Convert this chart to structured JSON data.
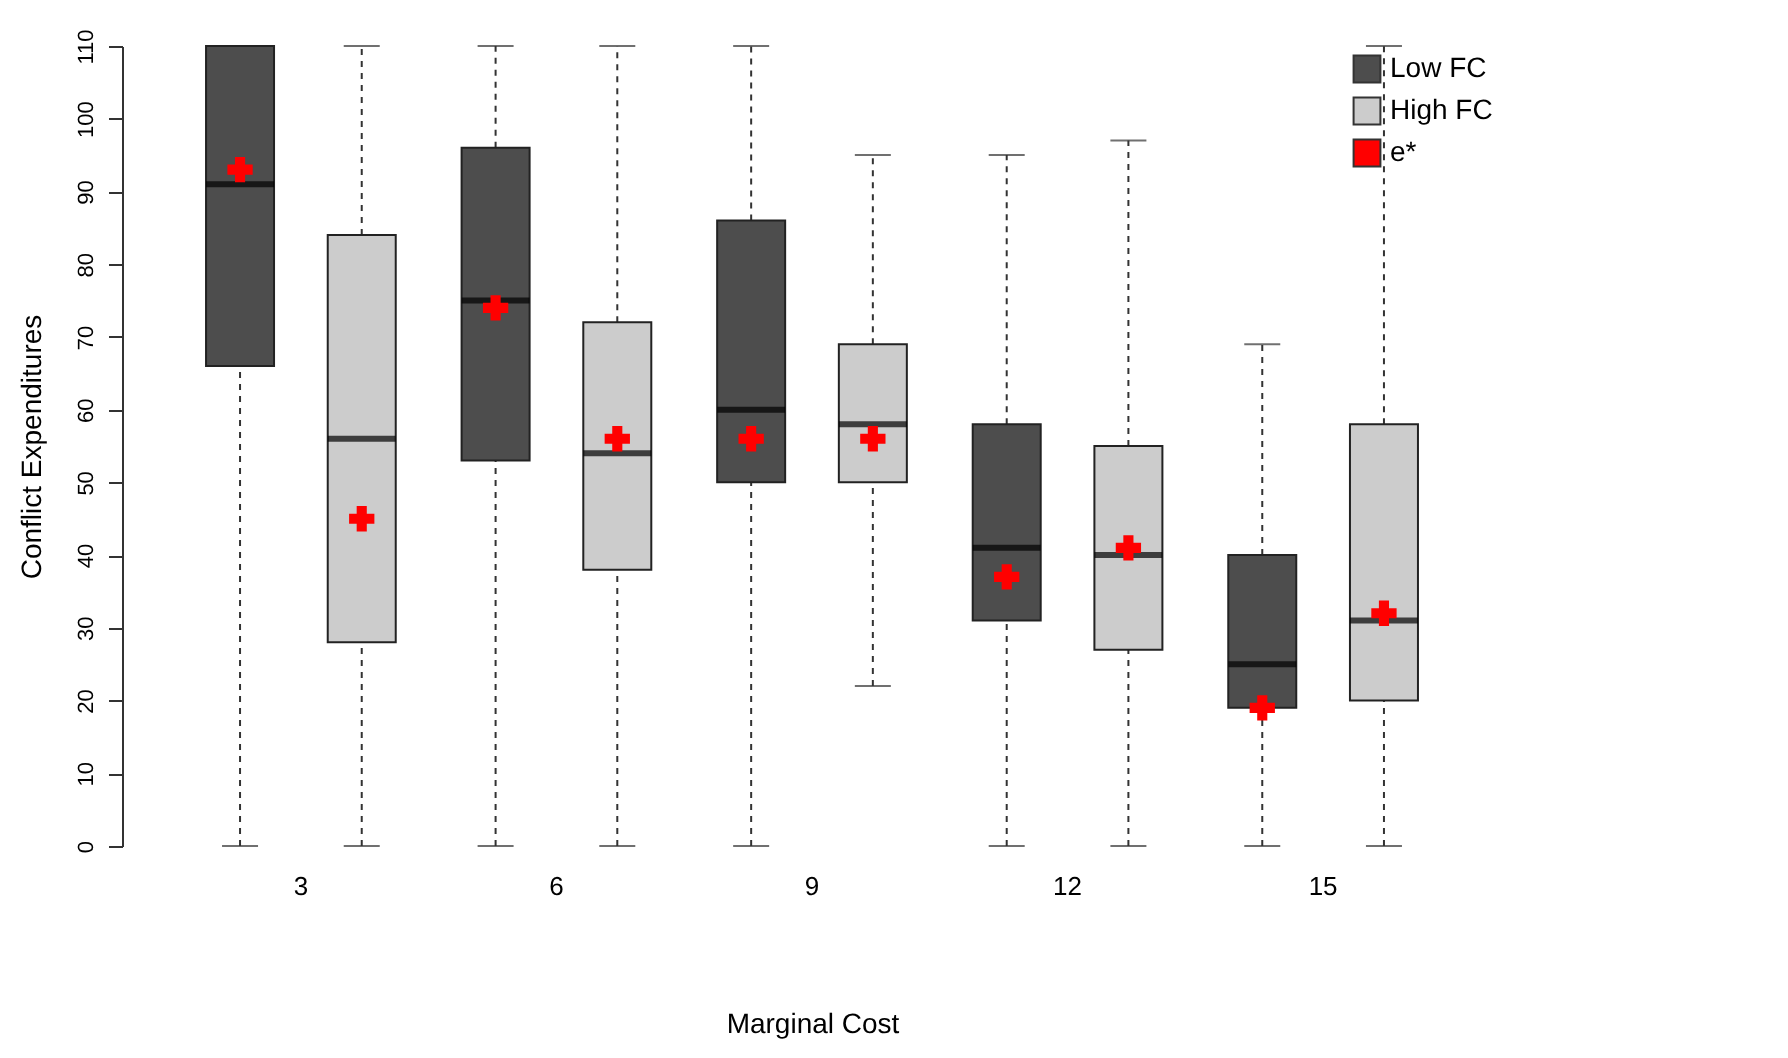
{
  "chart_data": {
    "type": "box",
    "xlabel": "Marginal Cost",
    "ylabel": "Conflict Expenditures",
    "categories": [
      "3",
      "6",
      "9",
      "12",
      "15"
    ],
    "ylim": [
      0,
      110
    ],
    "yticks": [
      0,
      10,
      20,
      30,
      40,
      50,
      60,
      70,
      80,
      90,
      100,
      110
    ],
    "grid": false,
    "legend": "top right",
    "marker": "cross",
    "series": [
      {
        "name": "Low FC",
        "color": "#4d4d4d",
        "boxes": [
          {
            "low": 0,
            "q1": 66,
            "median": 91,
            "q3": 110,
            "high": 110
          },
          {
            "low": 0,
            "q1": 53,
            "median": 75,
            "q3": 96,
            "high": 110
          },
          {
            "low": 0,
            "q1": 50,
            "median": 60,
            "q3": 86,
            "high": 110
          },
          {
            "low": 0,
            "q1": 31,
            "median": 41,
            "q3": 58,
            "high": 95
          },
          {
            "low": 0,
            "q1": 19,
            "median": 25,
            "q3": 40,
            "high": 69
          }
        ]
      },
      {
        "name": "High FC",
        "color": "#cccccc",
        "boxes": [
          {
            "low": 0,
            "q1": 28,
            "median": 56,
            "q3": 84,
            "high": 110
          },
          {
            "low": 0,
            "q1": 38,
            "median": 54,
            "q3": 72,
            "high": 110
          },
          {
            "low": 22,
            "q1": 50,
            "median": 58,
            "q3": 69,
            "high": 95
          },
          {
            "low": 0,
            "q1": 27,
            "median": 40,
            "q3": 55,
            "high": 97
          },
          {
            "low": 0,
            "q1": 20,
            "median": 31,
            "q3": 58,
            "high": 110
          }
        ]
      },
      {
        "type": "scatter",
        "name": "e*",
        "color": "#ff0000",
        "x": [
          "3",
          "6",
          "9",
          "12",
          "15"
        ],
        "values": [
          93,
          74,
          56,
          37,
          19
        ]
      },
      {
        "type": "scatter",
        "color": "#ff0000",
        "x": [
          "3",
          "6",
          "9",
          "12",
          "15"
        ],
        "values": [
          45,
          56,
          56,
          41,
          32
        ]
      }
    ]
  }
}
